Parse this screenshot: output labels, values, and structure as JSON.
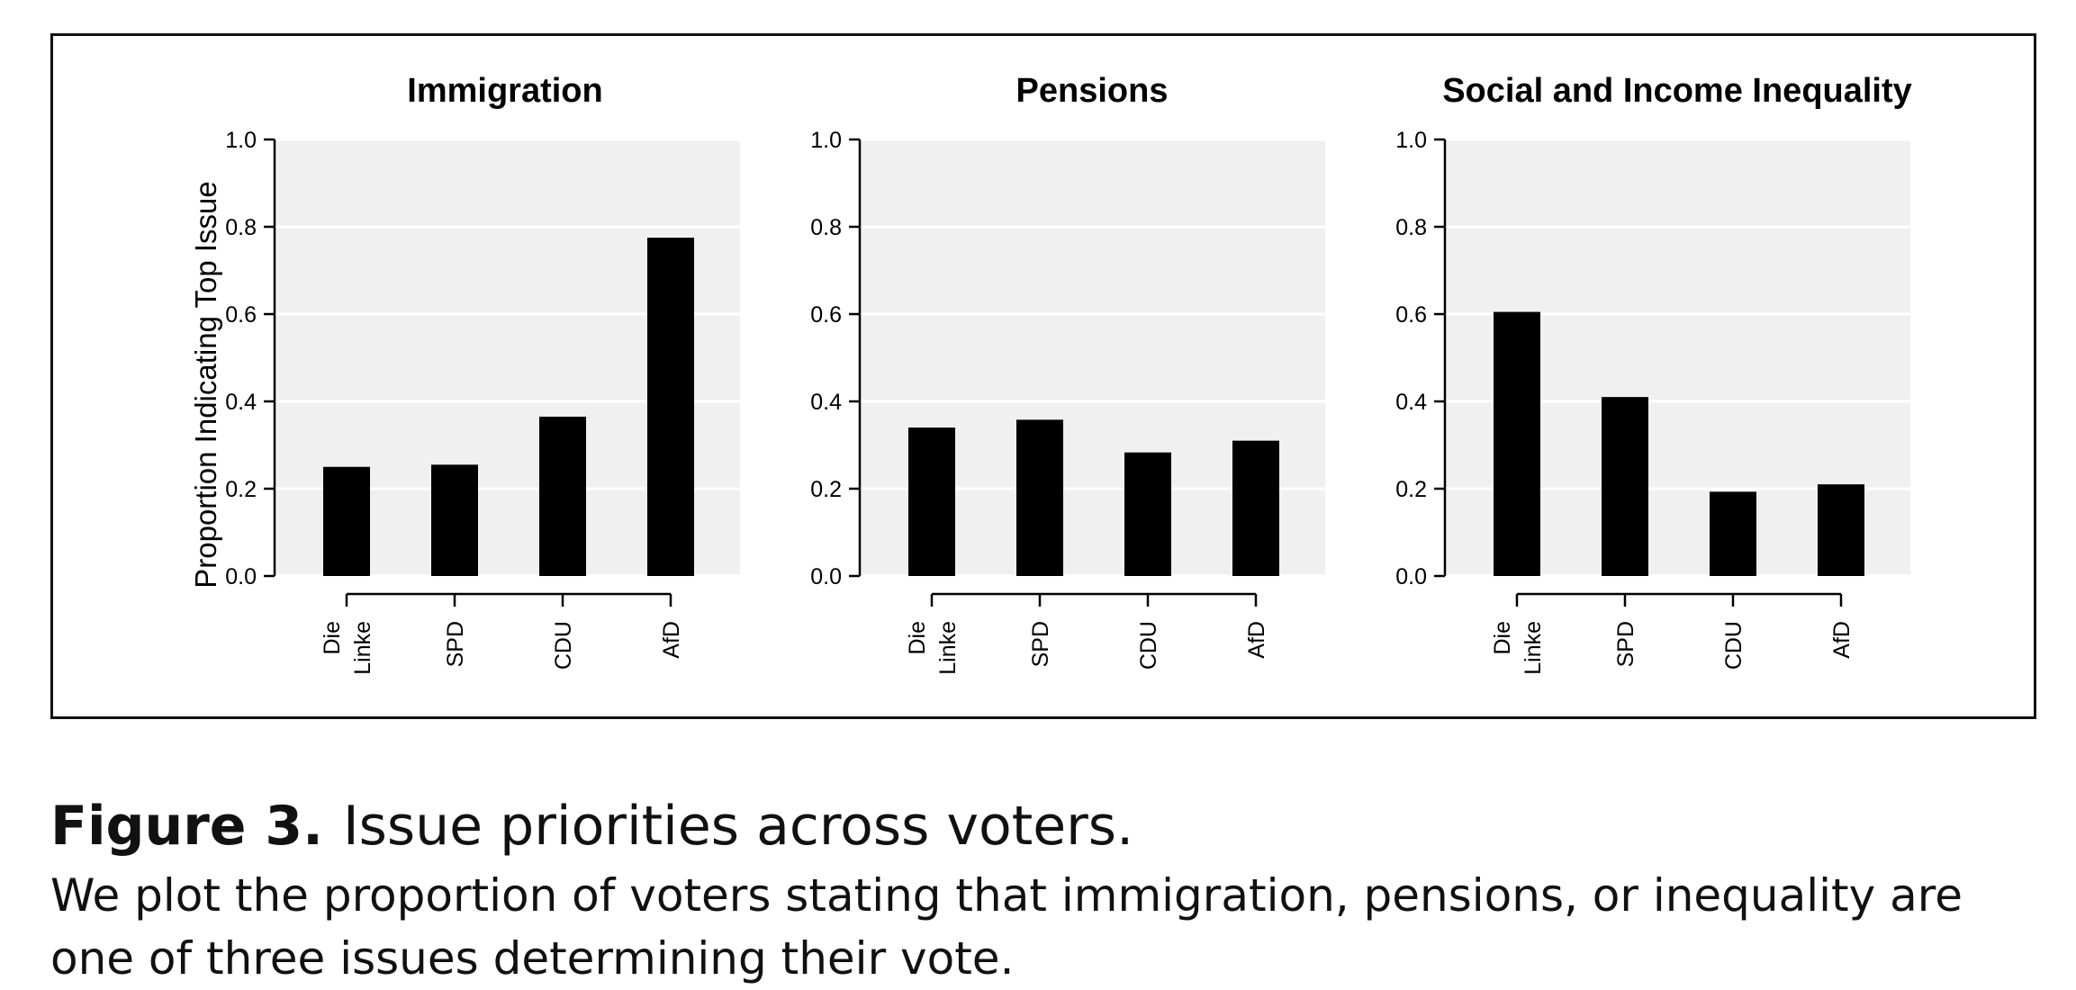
{
  "chart_data": [
    {
      "type": "bar",
      "title": "Immigration",
      "ylabel": "Proportion Indicating Top Issue",
      "categories": [
        "Die\nLinke",
        "SPD",
        "CDU",
        "AfD"
      ],
      "values": [
        0.25,
        0.255,
        0.365,
        0.775
      ],
      "ylim": [
        0,
        1.0
      ],
      "yticks": [
        "0.0",
        "0.2",
        "0.4",
        "0.6",
        "0.8",
        "1.0"
      ],
      "grid": true,
      "bar_color": "#000000",
      "panel_bg": "#f0f0f0"
    },
    {
      "type": "bar",
      "title": "Pensions",
      "ylabel": "",
      "categories": [
        "Die\nLinke",
        "SPD",
        "CDU",
        "AfD"
      ],
      "values": [
        0.34,
        0.358,
        0.283,
        0.31
      ],
      "ylim": [
        0,
        1.0
      ],
      "yticks": [
        "0.0",
        "0.2",
        "0.4",
        "0.6",
        "0.8",
        "1.0"
      ],
      "grid": true,
      "bar_color": "#000000",
      "panel_bg": "#f0f0f0"
    },
    {
      "type": "bar",
      "title": "Social and Income Inequality",
      "ylabel": "",
      "categories": [
        "Die\nLinke",
        "SPD",
        "CDU",
        "AfD"
      ],
      "values": [
        0.605,
        0.41,
        0.193,
        0.21
      ],
      "ylim": [
        0,
        1.0
      ],
      "yticks": [
        "0.0",
        "0.2",
        "0.4",
        "0.6",
        "0.8",
        "1.0"
      ],
      "grid": true,
      "bar_color": "#000000",
      "panel_bg": "#f0f0f0"
    }
  ],
  "caption": {
    "label": "Figure 3.",
    "title": "Issue priorities across voters.",
    "body": "We plot the proportion of voters stating that immigration, pensions, or inequality are one of three issues determining their vote."
  }
}
